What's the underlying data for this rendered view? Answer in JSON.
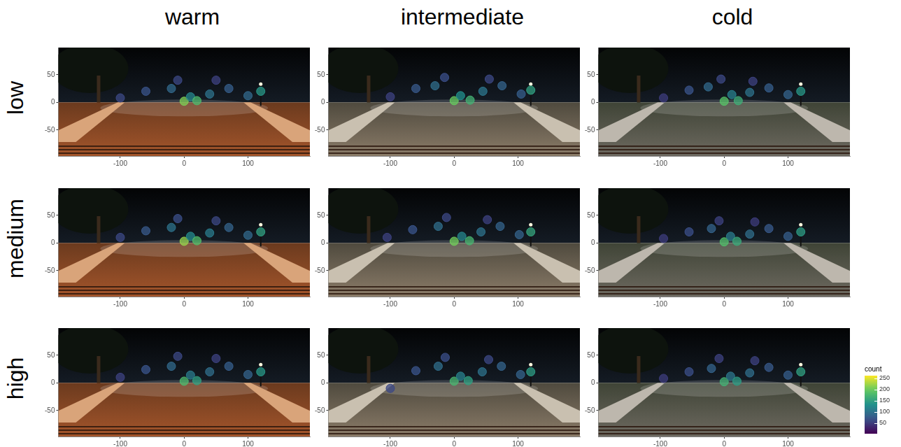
{
  "column_labels": [
    "warm",
    "intermediate",
    "cold"
  ],
  "row_labels": [
    "low",
    "medium",
    "high"
  ],
  "colorbar": {
    "label": "count",
    "range": [
      3,
      262
    ],
    "ticks": [
      50,
      100,
      150,
      200,
      250
    ]
  },
  "chart_data": [
    {
      "type": "scatter",
      "xlim": [
        -197,
        197
      ],
      "ylim": [
        -97,
        99
      ],
      "xticks": [
        -100,
        0,
        100
      ],
      "yticks": [
        -50,
        0,
        50
      ],
      "grid": false,
      "marker": "circle",
      "x": [
        -100,
        -60,
        -20,
        0,
        10,
        20,
        40,
        70,
        100,
        120,
        -10,
        50
      ],
      "values": [
        8,
        20,
        25,
        2,
        10,
        3,
        15,
        25,
        12,
        20,
        40,
        40
      ],
      "counts": [
        60,
        70,
        90,
        210,
        120,
        180,
        100,
        80,
        90,
        140,
        60,
        55
      ]
    },
    {
      "type": "scatter",
      "xlim": [
        -197,
        197
      ],
      "ylim": [
        -97,
        99
      ],
      "xticks": [
        -100,
        0,
        100
      ],
      "yticks": [
        -50,
        0,
        50
      ],
      "grid": false,
      "marker": "circle",
      "x": [
        -100,
        -60,
        -30,
        0,
        10,
        25,
        45,
        75,
        105,
        120,
        -15,
        55
      ],
      "values": [
        10,
        25,
        30,
        3,
        12,
        4,
        20,
        30,
        15,
        22,
        45,
        42
      ],
      "counts": [
        55,
        75,
        95,
        200,
        130,
        170,
        105,
        85,
        80,
        150,
        65,
        60
      ]
    },
    {
      "type": "scatter",
      "xlim": [
        -197,
        197
      ],
      "ylim": [
        -97,
        99
      ],
      "xticks": [
        -100,
        0,
        100
      ],
      "yticks": [
        -50,
        0,
        50
      ],
      "grid": false,
      "marker": "circle",
      "x": [
        -95,
        -55,
        -25,
        0,
        12,
        22,
        40,
        70,
        100,
        120,
        -5,
        45
      ],
      "values": [
        8,
        22,
        28,
        2,
        14,
        3,
        18,
        26,
        14,
        20,
        42,
        38
      ],
      "counts": [
        50,
        70,
        90,
        190,
        115,
        165,
        100,
        80,
        85,
        140,
        60,
        55
      ]
    },
    {
      "type": "scatter",
      "xlim": [
        -197,
        197
      ],
      "ylim": [
        -97,
        99
      ],
      "xticks": [
        -100,
        0,
        100
      ],
      "yticks": [
        -50,
        0,
        50
      ],
      "grid": false,
      "marker": "circle",
      "x": [
        -100,
        -60,
        -20,
        0,
        10,
        20,
        40,
        70,
        100,
        120,
        -10,
        50
      ],
      "values": [
        10,
        22,
        28,
        3,
        12,
        4,
        18,
        28,
        14,
        20,
        44,
        40
      ],
      "counts": [
        60,
        75,
        100,
        220,
        125,
        185,
        110,
        85,
        90,
        150,
        65,
        60
      ]
    },
    {
      "type": "scatter",
      "xlim": [
        -197,
        197
      ],
      "ylim": [
        -97,
        99
      ],
      "xticks": [
        -100,
        0,
        100
      ],
      "yticks": [
        -50,
        0,
        50
      ],
      "grid": false,
      "marker": "circle",
      "x": [
        -105,
        -65,
        -25,
        0,
        12,
        24,
        42,
        72,
        102,
        120,
        -12,
        52
      ],
      "values": [
        10,
        24,
        30,
        3,
        12,
        4,
        20,
        30,
        15,
        20,
        46,
        42
      ],
      "counts": [
        55,
        70,
        95,
        205,
        120,
        175,
        100,
        85,
        85,
        155,
        60,
        55
      ]
    },
    {
      "type": "scatter",
      "xlim": [
        -197,
        197
      ],
      "ylim": [
        -97,
        99
      ],
      "xticks": [
        -100,
        0,
        100
      ],
      "yticks": [
        -50,
        0,
        50
      ],
      "grid": false,
      "marker": "circle",
      "x": [
        -95,
        -55,
        -20,
        0,
        10,
        20,
        40,
        70,
        100,
        120,
        -8,
        48
      ],
      "values": [
        8,
        20,
        26,
        2,
        12,
        3,
        16,
        26,
        12,
        20,
        40,
        38
      ],
      "counts": [
        50,
        65,
        85,
        185,
        110,
        160,
        95,
        75,
        80,
        145,
        55,
        50
      ]
    },
    {
      "type": "scatter",
      "xlim": [
        -197,
        197
      ],
      "ylim": [
        -97,
        99
      ],
      "xticks": [
        -100,
        0,
        100
      ],
      "yticks": [
        -50,
        0,
        50
      ],
      "grid": false,
      "marker": "circle",
      "x": [
        -100,
        -60,
        -20,
        0,
        10,
        20,
        40,
        70,
        100,
        120,
        -10,
        50
      ],
      "values": [
        10,
        24,
        30,
        3,
        14,
        4,
        20,
        30,
        15,
        20,
        48,
        44
      ],
      "counts": [
        55,
        70,
        90,
        180,
        110,
        150,
        95,
        80,
        85,
        140,
        60,
        55
      ]
    },
    {
      "type": "scatter",
      "xlim": [
        -197,
        197
      ],
      "ylim": [
        -97,
        99
      ],
      "xticks": [
        -100,
        0,
        100
      ],
      "yticks": [
        -50,
        0,
        50
      ],
      "grid": false,
      "marker": "circle",
      "x": [
        -100,
        -60,
        -25,
        0,
        10,
        22,
        44,
        74,
        104,
        120,
        -14,
        54
      ],
      "values": [
        -10,
        22,
        30,
        3,
        12,
        4,
        20,
        30,
        15,
        20,
        46,
        42
      ],
      "counts": [
        60,
        70,
        95,
        175,
        115,
        150,
        100,
        85,
        85,
        145,
        65,
        60
      ]
    },
    {
      "type": "scatter",
      "xlim": [
        -197,
        197
      ],
      "ylim": [
        -97,
        99
      ],
      "xticks": [
        -100,
        0,
        100
      ],
      "yticks": [
        -50,
        0,
        50
      ],
      "grid": false,
      "marker": "circle",
      "x": [
        -95,
        -55,
        -20,
        0,
        10,
        20,
        40,
        70,
        100,
        120,
        -8,
        48
      ],
      "values": [
        8,
        20,
        26,
        2,
        12,
        3,
        18,
        28,
        14,
        20,
        44,
        40
      ],
      "counts": [
        50,
        65,
        85,
        170,
        105,
        145,
        95,
        75,
        80,
        150,
        55,
        55
      ]
    }
  ]
}
